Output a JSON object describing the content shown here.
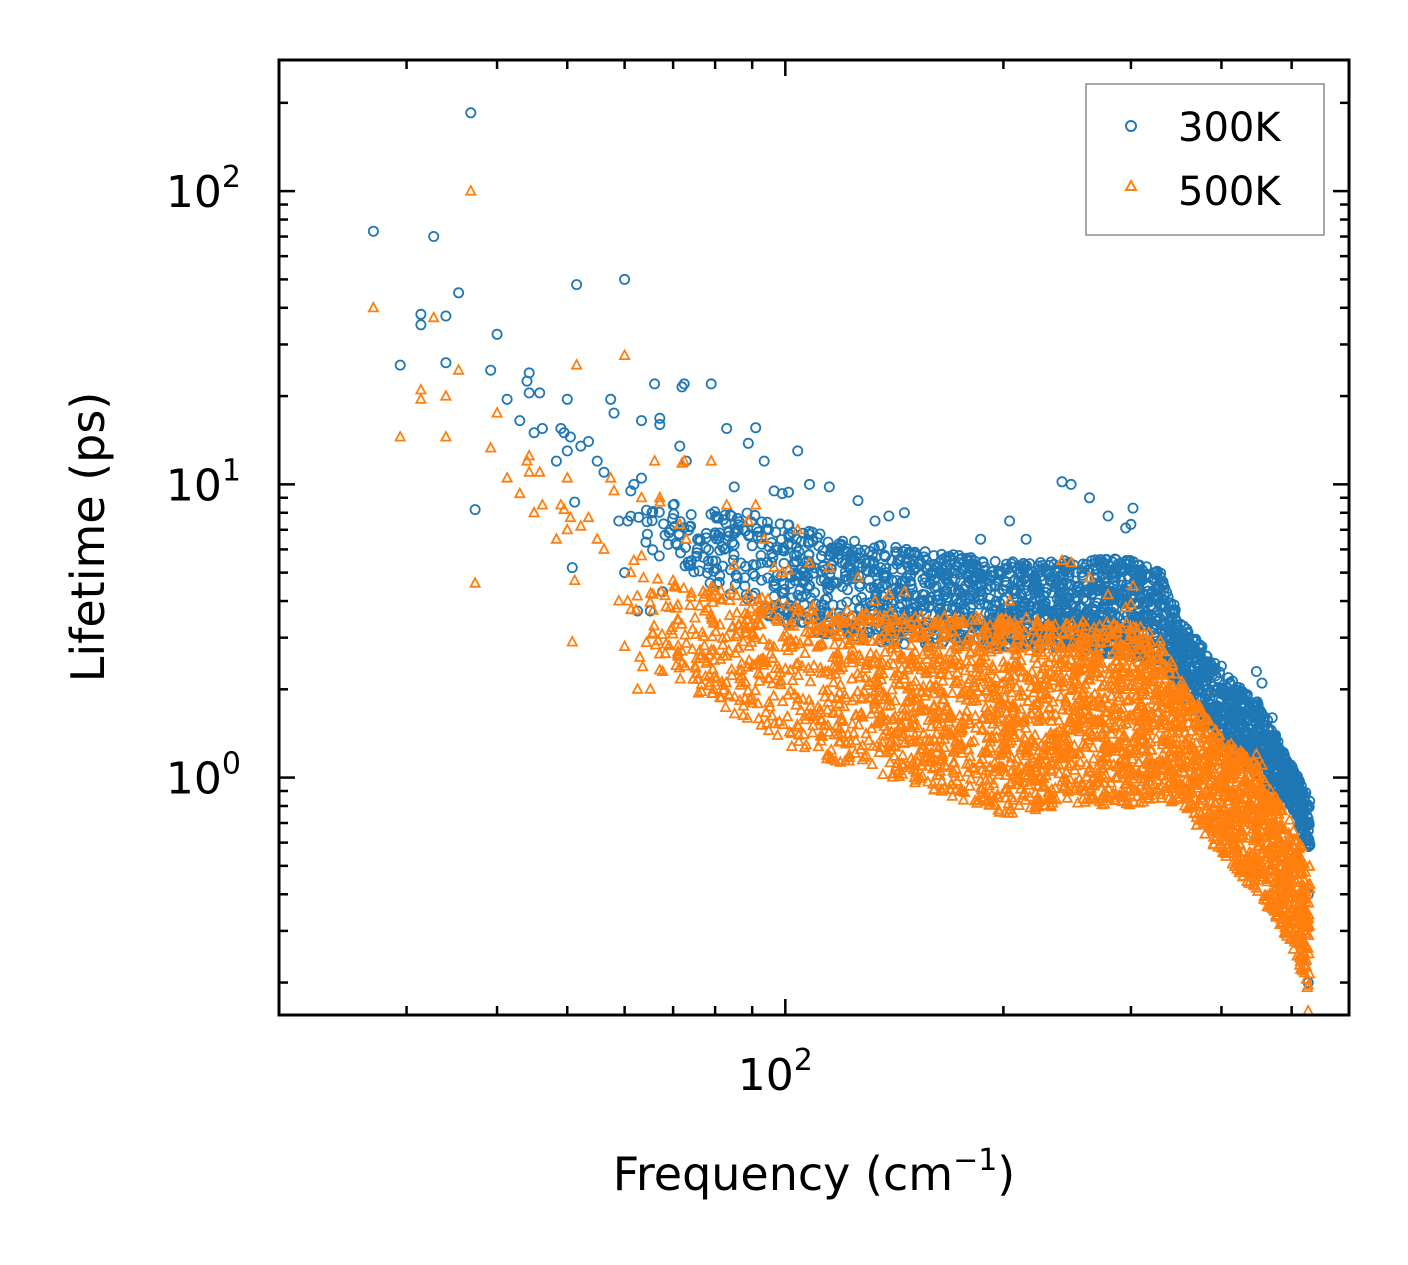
{
  "chart_data": {
    "type": "scatter",
    "title": "",
    "xlabel": "Frequency (cm",
    "xlabel_sup": "−1",
    "xlabel_suffix": ")",
    "ylabel": "Lifetime (ps)",
    "xscale": "log",
    "yscale": "log",
    "xlim": [
      20,
      600
    ],
    "ylim": [
      0.155,
      280
    ],
    "x_ticks": [
      {
        "value": 100,
        "base": "10",
        "exp": "2"
      }
    ],
    "y_ticks": [
      {
        "value": 1,
        "base": "10",
        "exp": "0"
      },
      {
        "value": 10,
        "base": "10",
        "exp": "1"
      },
      {
        "value": 100,
        "base": "10",
        "exp": "2"
      }
    ],
    "legend_position": "top-right",
    "colors": {
      "series_300K": "#1f77b4",
      "series_500K": "#ff7f0e"
    },
    "series": [
      {
        "name": "300K",
        "marker": "circle",
        "color": "#1f77b4",
        "explicit_points": [
          [
            27.0,
            73
          ],
          [
            29.4,
            25.5
          ],
          [
            31.4,
            38
          ],
          [
            31.4,
            35
          ],
          [
            32.7,
            70
          ],
          [
            34.0,
            37.5
          ],
          [
            34.0,
            26
          ],
          [
            35.4,
            45
          ],
          [
            36.8,
            185
          ],
          [
            37.3,
            8.2
          ],
          [
            39.2,
            24.5
          ],
          [
            40.0,
            32.5
          ],
          [
            41.3,
            19.5
          ],
          [
            43.0,
            16.5
          ],
          [
            44.0,
            22.5
          ],
          [
            44.3,
            24
          ],
          [
            44.3,
            20.5
          ],
          [
            45.0,
            15
          ],
          [
            45.8,
            20.5
          ],
          [
            46.2,
            15.5
          ],
          [
            48.3,
            12
          ],
          [
            49.0,
            15.5
          ],
          [
            49.5,
            15
          ],
          [
            50.0,
            19.5
          ],
          [
            50.0,
            13
          ],
          [
            50.5,
            14.5
          ],
          [
            50.8,
            5.2
          ],
          [
            51.2,
            8.7
          ],
          [
            51.5,
            48
          ],
          [
            52.2,
            13.5
          ],
          [
            53.5,
            14
          ],
          [
            55.0,
            12
          ],
          [
            56.2,
            11
          ],
          [
            57.4,
            19.5
          ],
          [
            58.0,
            17.5
          ],
          [
            58.9,
            7.5
          ],
          [
            60.0,
            50
          ],
          [
            60.0,
            5
          ],
          [
            60.6,
            7.5
          ],
          [
            61.2,
            9.5
          ],
          [
            61.8,
            10
          ],
          [
            62.5,
            3.7
          ],
          [
            63.3,
            16.5
          ],
          [
            63.3,
            10.5
          ],
          [
            65.1,
            3.7
          ],
          [
            66.0,
            22
          ],
          [
            67.1,
            16.8
          ],
          [
            67.1,
            16
          ],
          [
            67.7,
            4.3
          ],
          [
            69.3,
            7
          ],
          [
            70.0,
            8.5
          ],
          [
            71.5,
            13.5
          ],
          [
            72.0,
            21.5
          ],
          [
            72.5,
            22
          ],
          [
            73.0,
            12
          ],
          [
            79.0,
            22
          ],
          [
            83.0,
            15.5
          ],
          [
            85.0,
            9.8
          ],
          [
            88.9,
            13.8
          ],
          [
            91.0,
            15.6
          ],
          [
            93.5,
            12
          ],
          [
            96.5,
            9.5
          ],
          [
            99.0,
            9.3
          ],
          [
            101.0,
            9.4
          ],
          [
            104.0,
            13
          ],
          [
            108.0,
            10
          ],
          [
            115.0,
            9.8
          ],
          [
            126.0,
            8.8
          ],
          [
            133.0,
            7.5
          ],
          [
            139.0,
            7.8
          ],
          [
            146.0,
            8
          ],
          [
            186.0,
            6.5
          ],
          [
            204.0,
            7.5
          ],
          [
            215.0,
            6.5
          ],
          [
            241.0,
            10.2
          ],
          [
            248.0,
            10
          ],
          [
            263.0,
            9
          ],
          [
            279.0,
            7.8
          ],
          [
            302.0,
            8.3
          ],
          [
            300.0,
            7.3
          ],
          [
            295.0,
            7.1
          ],
          [
            447.0,
            2.3
          ],
          [
            455.0,
            2.1
          ],
          [
            523.0,
            0.7
          ],
          [
            527.0,
            0.4
          ],
          [
            527.0,
            0.2
          ],
          [
            400.0,
            2.4
          ],
          [
            470.0,
            1.6
          ]
        ],
        "envelope": [
          [
            60,
            6.5,
            10
          ],
          [
            80,
            4.5,
            8.5
          ],
          [
            100,
            3.3,
            7.5
          ],
          [
            120,
            3.0,
            6.5
          ],
          [
            150,
            2.8,
            6.0
          ],
          [
            200,
            2.8,
            5.5
          ],
          [
            250,
            2.7,
            5.5
          ],
          [
            300,
            2.6,
            5.6
          ],
          [
            330,
            2.5,
            5.0
          ],
          [
            350,
            2.0,
            3.5
          ],
          [
            400,
            1.3,
            2.3
          ],
          [
            450,
            1.0,
            1.8
          ],
          [
            500,
            0.8,
            1.1
          ],
          [
            530,
            0.55,
            0.85
          ]
        ],
        "cloud_count": 2400
      },
      {
        "name": "500K",
        "marker": "triangle",
        "color": "#ff7f0e",
        "explicit_points": [
          [
            27.0,
            40
          ],
          [
            29.4,
            14.5
          ],
          [
            31.4,
            21
          ],
          [
            31.4,
            19.5
          ],
          [
            32.7,
            37
          ],
          [
            34.0,
            20
          ],
          [
            34.0,
            14.5
          ],
          [
            35.4,
            24.5
          ],
          [
            36.8,
            100
          ],
          [
            37.3,
            4.6
          ],
          [
            39.2,
            13.3
          ],
          [
            40.0,
            17.5
          ],
          [
            41.3,
            10.5
          ],
          [
            43.0,
            9.3
          ],
          [
            44.0,
            12
          ],
          [
            44.3,
            12.5
          ],
          [
            44.3,
            11
          ],
          [
            45.0,
            8
          ],
          [
            45.8,
            11
          ],
          [
            46.2,
            8.5
          ],
          [
            48.3,
            6.5
          ],
          [
            49.0,
            8.5
          ],
          [
            49.5,
            8.2
          ],
          [
            50.0,
            10.5
          ],
          [
            50.0,
            7
          ],
          [
            50.5,
            7.7
          ],
          [
            50.8,
            2.9
          ],
          [
            51.2,
            4.7
          ],
          [
            51.5,
            25.5
          ],
          [
            52.2,
            7.2
          ],
          [
            53.5,
            7.7
          ],
          [
            55.0,
            6.5
          ],
          [
            56.2,
            6
          ],
          [
            57.4,
            10.5
          ],
          [
            58.0,
            9.5
          ],
          [
            58.9,
            4
          ],
          [
            60.0,
            27.5
          ],
          [
            60.0,
            2.8
          ],
          [
            60.6,
            4
          ],
          [
            61.2,
            5
          ],
          [
            61.8,
            5.5
          ],
          [
            62.5,
            2
          ],
          [
            63.3,
            9
          ],
          [
            63.3,
            5.7
          ],
          [
            65.1,
            2
          ],
          [
            66.0,
            12
          ],
          [
            67.1,
            9
          ],
          [
            67.1,
            8.7
          ],
          [
            67.7,
            2.3
          ],
          [
            69.3,
            3.8
          ],
          [
            70.0,
            4.7
          ],
          [
            71.5,
            7.3
          ],
          [
            72.0,
            11.8
          ],
          [
            72.5,
            12
          ],
          [
            73.0,
            6.5
          ],
          [
            79.0,
            12
          ],
          [
            83.0,
            8.5
          ],
          [
            85.0,
            5.3
          ],
          [
            88.9,
            7.5
          ],
          [
            91.0,
            8.5
          ],
          [
            93.5,
            6.5
          ],
          [
            96.5,
            5.2
          ],
          [
            99.0,
            5
          ],
          [
            101.0,
            5.1
          ],
          [
            104.0,
            7
          ],
          [
            108.0,
            5.4
          ],
          [
            115.0,
            5.2
          ],
          [
            126.0,
            4.8
          ],
          [
            133.0,
            4
          ],
          [
            139.0,
            4.2
          ],
          [
            146.0,
            4.3
          ],
          [
            186.0,
            3.5
          ],
          [
            204.0,
            4
          ],
          [
            215.0,
            3.5
          ],
          [
            241.0,
            5.5
          ],
          [
            248.0,
            5.4
          ],
          [
            263.0,
            4.8
          ],
          [
            279.0,
            4.2
          ],
          [
            302.0,
            4.5
          ],
          [
            300.0,
            3.9
          ],
          [
            295.0,
            3.8
          ],
          [
            447.0,
            1.2
          ],
          [
            455.0,
            1.1
          ],
          [
            523.0,
            0.3
          ],
          [
            527.0,
            0.16
          ],
          [
            400.0,
            1.3
          ],
          [
            470.0,
            0.85
          ]
        ],
        "envelope": [
          [
            60,
            2.5,
            5
          ],
          [
            80,
            1.8,
            4.5
          ],
          [
            100,
            1.3,
            4.0
          ],
          [
            120,
            1.1,
            3.8
          ],
          [
            150,
            0.95,
            3.6
          ],
          [
            200,
            0.75,
            3.5
          ],
          [
            250,
            0.8,
            3.4
          ],
          [
            300,
            0.8,
            3.4
          ],
          [
            330,
            0.85,
            3.0
          ],
          [
            350,
            0.8,
            2.2
          ],
          [
            400,
            0.55,
            1.4
          ],
          [
            450,
            0.4,
            1.1
          ],
          [
            500,
            0.27,
            0.7
          ],
          [
            530,
            0.18,
            0.5
          ]
        ],
        "cloud_count": 3200
      }
    ]
  }
}
